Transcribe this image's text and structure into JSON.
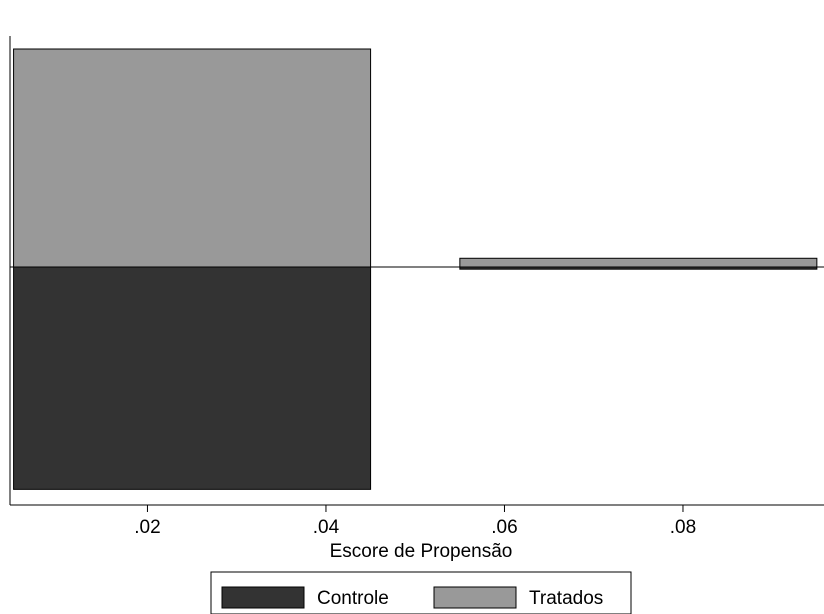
{
  "chart_data": {
    "type": "bar",
    "subtype": "mirrored-histogram",
    "xlabel": "Escore de Propensão",
    "ylabel": "",
    "xlim": [
      0.0046,
      0.0958
    ],
    "x_ticks": [
      0.02,
      0.04,
      0.06,
      0.08
    ],
    "x_tick_labels": [
      ".02",
      ".04",
      ".06",
      ".08"
    ],
    "grid": false,
    "legend_position": "bottom",
    "series": [
      {
        "name": "Tratados",
        "direction": "up",
        "color": "#999999",
        "bins": [
          {
            "x0": 0.005,
            "x1": 0.045,
            "value": 1.0
          },
          {
            "x0": 0.055,
            "x1": 0.095,
            "value": 0.04
          }
        ]
      },
      {
        "name": "Controle",
        "direction": "down",
        "color": "#333333",
        "bins": [
          {
            "x0": 0.005,
            "x1": 0.045,
            "value": 1.02
          },
          {
            "x0": 0.055,
            "x1": 0.095,
            "value": 0.01
          }
        ]
      }
    ],
    "legend": [
      "Controle",
      "Tratados"
    ]
  }
}
